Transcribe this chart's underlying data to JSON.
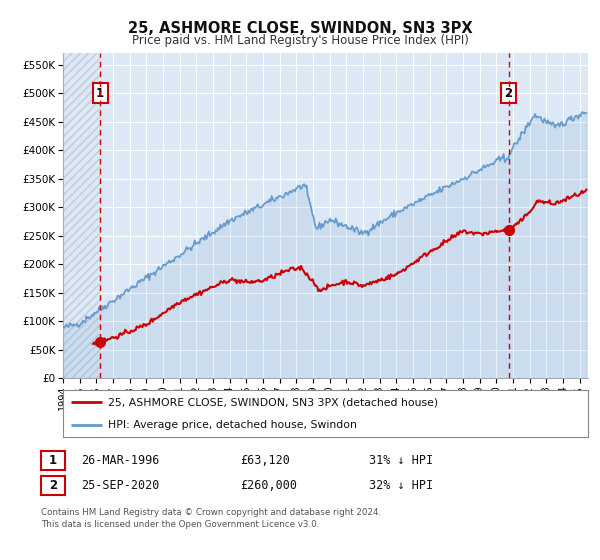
{
  "title": "25, ASHMORE CLOSE, SWINDON, SN3 3PX",
  "subtitle": "Price paid vs. HM Land Registry's House Price Index (HPI)",
  "legend_line1": "25, ASHMORE CLOSE, SWINDON, SN3 3PX (detached house)",
  "legend_line2": "HPI: Average price, detached house, Swindon",
  "footnote1": "Contains HM Land Registry data © Crown copyright and database right 2024.",
  "footnote2": "This data is licensed under the Open Government Licence v3.0.",
  "table_row1": [
    "1",
    "26-MAR-1996",
    "£63,120",
    "31% ↓ HPI"
  ],
  "table_row2": [
    "2",
    "25-SEP-2020",
    "£260,000",
    "32% ↓ HPI"
  ],
  "sale1_date": 1996.23,
  "sale1_price": 63120,
  "sale2_date": 2020.73,
  "sale2_price": 260000,
  "red_color": "#cc0000",
  "blue_color": "#6699cc",
  "blue_fill": "#d0e0f0",
  "vline_color": "#cc0000",
  "background_color": "#dce8f5",
  "grid_color": "#ffffff",
  "hatch_color": "#c0ccd8",
  "xlim": [
    1994.0,
    2025.5
  ],
  "ylim": [
    0,
    570000
  ],
  "yticks": [
    0,
    50000,
    100000,
    150000,
    200000,
    250000,
    300000,
    350000,
    400000,
    450000,
    500000,
    550000
  ],
  "ytick_labels": [
    "£0",
    "£50K",
    "£100K",
    "£150K",
    "£200K",
    "£250K",
    "£300K",
    "£350K",
    "£400K",
    "£450K",
    "£500K",
    "£550K"
  ],
  "xticks": [
    1994,
    1995,
    1996,
    1997,
    1998,
    1999,
    2000,
    2001,
    2002,
    2003,
    2004,
    2005,
    2006,
    2007,
    2008,
    2009,
    2010,
    2011,
    2012,
    2013,
    2014,
    2015,
    2016,
    2017,
    2018,
    2019,
    2020,
    2021,
    2022,
    2023,
    2024,
    2025
  ]
}
